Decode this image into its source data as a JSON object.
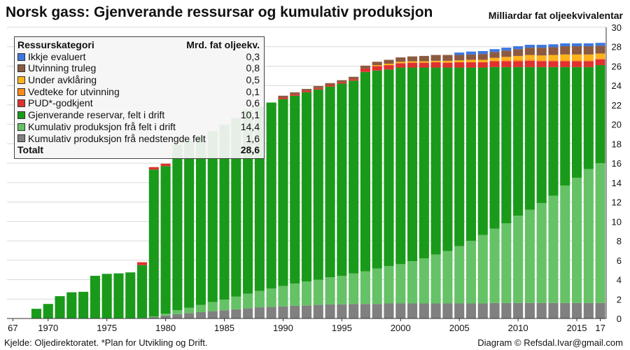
{
  "chart_data": {
    "type": "bar",
    "stacked": true,
    "title": "Norsk gass: Gjenverande ressursar og kumulativ produksjon",
    "ylabel": "Milliardar fat oljeekvivalentar",
    "ylim": [
      0,
      30
    ],
    "yticks": [
      0,
      2,
      4,
      6,
      8,
      10,
      12,
      14,
      16,
      18,
      20,
      22,
      24,
      26,
      28,
      30
    ],
    "ytick_position": "right",
    "xtick_labels": [
      {
        "year": 1967,
        "label": "67"
      },
      {
        "year": 1970,
        "label": "1970"
      },
      {
        "year": 1975,
        "label": "1975"
      },
      {
        "year": 1980,
        "label": "1980"
      },
      {
        "year": 1985,
        "label": "1985"
      },
      {
        "year": 1990,
        "label": "1990"
      },
      {
        "year": 1995,
        "label": "1995"
      },
      {
        "year": 2000,
        "label": "2000"
      },
      {
        "year": 2005,
        "label": "2005"
      },
      {
        "year": 2010,
        "label": "2010"
      },
      {
        "year": 2015,
        "label": "2015"
      },
      {
        "year": 2017,
        "label": "17"
      }
    ],
    "grid": true,
    "legend_position": "top-left",
    "x": [
      1967,
      1968,
      1969,
      1970,
      1971,
      1972,
      1973,
      1974,
      1975,
      1976,
      1977,
      1978,
      1979,
      1980,
      1981,
      1982,
      1983,
      1984,
      1985,
      1986,
      1987,
      1988,
      1989,
      1990,
      1991,
      1992,
      1993,
      1994,
      1995,
      1996,
      1997,
      1998,
      1999,
      2000,
      2001,
      2002,
      2003,
      2004,
      2005,
      2006,
      2007,
      2008,
      2009,
      2010,
      2011,
      2012,
      2013,
      2014,
      2015,
      2016,
      2017
    ],
    "series": [
      {
        "name": "Kumulativ produksjon frå nedstengde felt",
        "color": "#808080",
        "values": [
          0,
          0,
          0,
          0,
          0,
          0,
          0,
          0,
          0,
          0,
          0,
          0.05,
          0.15,
          0.3,
          0.45,
          0.55,
          0.65,
          0.75,
          0.85,
          0.95,
          1.05,
          1.15,
          1.2,
          1.25,
          1.3,
          1.35,
          1.4,
          1.45,
          1.45,
          1.5,
          1.5,
          1.5,
          1.55,
          1.55,
          1.55,
          1.55,
          1.55,
          1.55,
          1.55,
          1.55,
          1.55,
          1.6,
          1.6,
          1.6,
          1.6,
          1.6,
          1.6,
          1.6,
          1.6,
          1.6,
          1.6
        ]
      },
      {
        "name": "Kumulativ produksjon frå felt i drift",
        "color": "#66c266",
        "values": [
          0,
          0,
          0,
          0,
          0,
          0,
          0,
          0,
          0,
          0,
          0,
          0,
          0.05,
          0.2,
          0.4,
          0.55,
          0.75,
          0.95,
          1.1,
          1.3,
          1.5,
          1.7,
          1.9,
          2.1,
          2.3,
          2.45,
          2.6,
          2.8,
          2.95,
          3.15,
          3.35,
          3.65,
          3.85,
          4.05,
          4.35,
          4.65,
          5.05,
          5.4,
          5.9,
          6.45,
          7.05,
          7.65,
          8.2,
          9.0,
          9.6,
          10.3,
          11.05,
          12.1,
          12.9,
          13.8,
          14.4
        ]
      },
      {
        "name": "Gjenverande reservar, felt i drift",
        "color": "#1a9a1a",
        "values": [
          0,
          0,
          1.0,
          1.5,
          2.3,
          2.7,
          2.75,
          4.4,
          4.6,
          4.65,
          4.75,
          5.45,
          15.15,
          15.2,
          17.05,
          17.2,
          17.4,
          17.6,
          18.0,
          18.4,
          18.9,
          19.0,
          19.15,
          19.25,
          19.35,
          19.5,
          19.6,
          19.65,
          19.8,
          19.85,
          20.55,
          20.4,
          20.25,
          20.25,
          19.95,
          19.65,
          19.25,
          18.9,
          18.4,
          17.85,
          17.25,
          16.65,
          16.1,
          15.3,
          14.7,
          14.0,
          13.25,
          12.2,
          11.4,
          10.5,
          10.1
        ]
      },
      {
        "name": "PUD*-godkjent",
        "color": "#e03030",
        "values": [
          0,
          0,
          0,
          0,
          0,
          0,
          0,
          0,
          0,
          0,
          0,
          0.3,
          0.25,
          0.25,
          0,
          0,
          0,
          0,
          0,
          0,
          0,
          0,
          0,
          0.15,
          0.15,
          0.15,
          0.15,
          0.15,
          0.15,
          0.15,
          0.35,
          0.45,
          0.45,
          0.45,
          0.5,
          0.5,
          0.55,
          0.5,
          0.55,
          0.55,
          0.55,
          0.6,
          0.6,
          0.6,
          0.65,
          0.6,
          0.6,
          0.6,
          0.6,
          0.6,
          0.6
        ]
      },
      {
        "name": "Vedteke for utvinning",
        "color": "#ff8c1a",
        "values": [
          0,
          0,
          0,
          0,
          0,
          0,
          0,
          0,
          0,
          0,
          0,
          0,
          0,
          0,
          0,
          0,
          0,
          0,
          0,
          0,
          0,
          0,
          0,
          0,
          0,
          0,
          0,
          0,
          0,
          0,
          0,
          0,
          0,
          0,
          0,
          0,
          0,
          0,
          0,
          0,
          0,
          0.05,
          0.1,
          0.15,
          0.15,
          0.1,
          0.1,
          0.1,
          0.1,
          0.1,
          0.1
        ]
      },
      {
        "name": "Under avklåring",
        "color": "#ffb31a",
        "values": [
          0,
          0,
          0,
          0,
          0,
          0,
          0,
          0,
          0,
          0,
          0,
          0,
          0,
          0,
          0,
          0,
          0,
          0,
          0,
          0,
          0,
          0,
          0,
          0,
          0,
          0,
          0,
          0,
          0,
          0,
          0,
          0.1,
          0.15,
          0.15,
          0.15,
          0.15,
          0.15,
          0.2,
          0.2,
          0.25,
          0.25,
          0.3,
          0.35,
          0.4,
          0.45,
          0.5,
          0.55,
          0.6,
          0.6,
          0.6,
          0.5
        ]
      },
      {
        "name": "Utvinning truleg",
        "color": "#8c5a40",
        "values": [
          0,
          0,
          0,
          0,
          0,
          0,
          0,
          0,
          0,
          0,
          0,
          0,
          0,
          0,
          0,
          0,
          0,
          0,
          0,
          0,
          0,
          0,
          0,
          0.2,
          0.2,
          0.2,
          0.2,
          0.2,
          0.2,
          0.25,
          0.3,
          0.35,
          0.4,
          0.45,
          0.5,
          0.55,
          0.6,
          0.6,
          0.55,
          0.55,
          0.6,
          0.6,
          0.65,
          0.7,
          0.75,
          0.8,
          0.8,
          0.85,
          0.85,
          0.85,
          0.8
        ]
      },
      {
        "name": "Ikkje evaluert",
        "color": "#3d78e0",
        "values": [
          0,
          0,
          0,
          0,
          0,
          0,
          0,
          0,
          0,
          0,
          0,
          0,
          0,
          0,
          0,
          0,
          0,
          0,
          0,
          0,
          0,
          0,
          0,
          0,
          0,
          0,
          0,
          0,
          0,
          0,
          0,
          0,
          0,
          0,
          0,
          0,
          0,
          0,
          0.25,
          0.3,
          0.3,
          0.3,
          0.3,
          0.3,
          0.3,
          0.3,
          0.3,
          0.3,
          0.3,
          0.3,
          0.3
        ]
      }
    ]
  },
  "legend": {
    "header_category": "Ressurskategori",
    "header_value": "Mrd. fat oljeekv.",
    "rows": [
      {
        "label": "Ikkje evaluert",
        "value": "0,3",
        "color": "#3d78e0"
      },
      {
        "label": "Utvinning truleg",
        "value": "0,8",
        "color": "#8c5a40"
      },
      {
        "label": "Under avklåring",
        "value": "0,5",
        "color": "#ffb31a"
      },
      {
        "label": "Vedteke for utvinning",
        "value": "0,1",
        "color": "#ff8c1a"
      },
      {
        "label": "PUD*-godkjent",
        "value": "0,6",
        "color": "#e03030"
      },
      {
        "label": "Gjenverande reservar, felt i drift",
        "value": "10,1",
        "color": "#1a9a1a"
      },
      {
        "label": "Kumulativ produksjon frå felt i drift",
        "value": "14,4",
        "color": "#66c266"
      },
      {
        "label": "Kumulativ produksjon frå nedstengde felt",
        "value": "1,6",
        "color": "#808080"
      }
    ],
    "total_label": "Totalt",
    "total_value": "28,6"
  },
  "footer": {
    "source": "Kjelde: Oljedirektoratet. *Plan for Utvikling og Drift.",
    "credit": "Diagram © Refsdal.Ivar@gmail.com"
  }
}
